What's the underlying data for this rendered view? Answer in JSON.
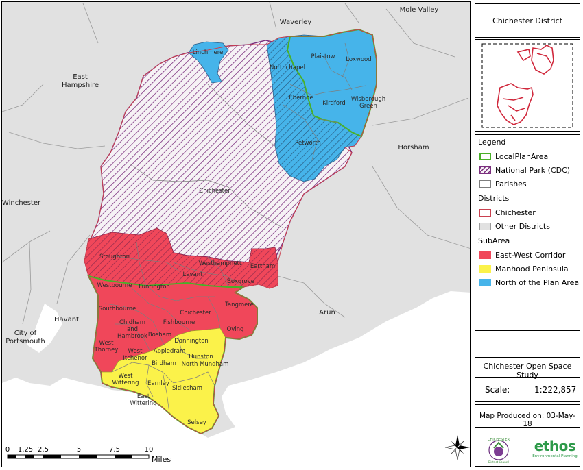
{
  "map": {
    "neighbours": {
      "mole_valley": "Mole Valley",
      "waverley": "Waverley",
      "east_hampshire": "East\nHampshire",
      "horsham": "Horsham",
      "winchester": "Winchester",
      "havant": "Havant",
      "portsmouth": "City of\nPortsmouth",
      "arun": "Arun"
    },
    "parishes": {
      "linchmere": "Linchmere",
      "northchapel": "Northchapel",
      "plaistow": "Plaistow",
      "loxwood": "Loxwood",
      "ebernoe": "Ebernoe",
      "kirdford": "Kirdford",
      "wisborough": "Wisborough\nGreen",
      "petworth": "Petworth",
      "chichester_np": "Chichester",
      "stoughton": "Stoughton",
      "westhampnett": "Westhampnett",
      "eartham": "Eartham",
      "lavant": "Lavant",
      "westbourne": "Westbourne",
      "funtington": "Funtington",
      "boxgrove": "Boxgrove",
      "southbourne": "Southbourne",
      "tangmere": "Tangmere",
      "chichester_city": "Chichester",
      "chidham": "Chidham\nand\nHambrook",
      "fishbourne": "Fishbourne",
      "oving": "Oving",
      "bosham": "Bosham",
      "west_thorney": "West\nThorney",
      "donnington": "Donnington",
      "west_itchenor": "West\nItchenor",
      "appledram": "Appledram",
      "hunston": "Hunston",
      "north_mundham": "North Mundham",
      "birdham": "Birdham",
      "west_wittering": "West\nWittering",
      "earnley": "Earnley",
      "sidlesham": "Sidlesham",
      "east_wittering": "East\nWittering",
      "selsey": "Selsey"
    },
    "scale_bar": {
      "ticks": [
        "0",
        "1.25",
        "2.5",
        "5",
        "7.5",
        "10"
      ],
      "unit": "Miles"
    },
    "north_arrow": "north-arrow-icon"
  },
  "panels": {
    "title": "Chichester District",
    "legend": {
      "heading": "Legend",
      "items": [
        {
          "label": "LocalPlanArea",
          "style": "outline-green"
        },
        {
          "label": "National Park (CDC)",
          "style": "hatch-purple"
        },
        {
          "label": "Parishes",
          "style": "outline-grey"
        }
      ],
      "districts_heading": "Districts",
      "districts": [
        {
          "label": "Chichester",
          "style": "outline-pink"
        },
        {
          "label": "Other Districts",
          "style": "fill-grey"
        }
      ],
      "subarea_heading": "SubArea",
      "subareas": [
        {
          "label": "East-West Corridor",
          "color": "#f0475a"
        },
        {
          "label": "Manhood Peninsula",
          "color": "#fbf24a"
        },
        {
          "label": "North of the Plan Area",
          "color": "#46b4ea"
        }
      ]
    },
    "study_title": "Chichester Open Space Study",
    "scale_label": "Scale:",
    "scale_value": "1:222,857",
    "produced": "Map Produced on: 03-May-18",
    "logos": {
      "council": "CHICHESTER",
      "council_sub": "District Council",
      "ethos": "ethos",
      "ethos_sub": "Environmental Planning"
    }
  },
  "colors": {
    "east_west": "#f0475a",
    "manhood": "#fbf24a",
    "north": "#46b4ea",
    "other_districts": "#e1e1e1",
    "local_plan_outline": "#49b028",
    "national_park_hatch": "#7b2f7e"
  }
}
